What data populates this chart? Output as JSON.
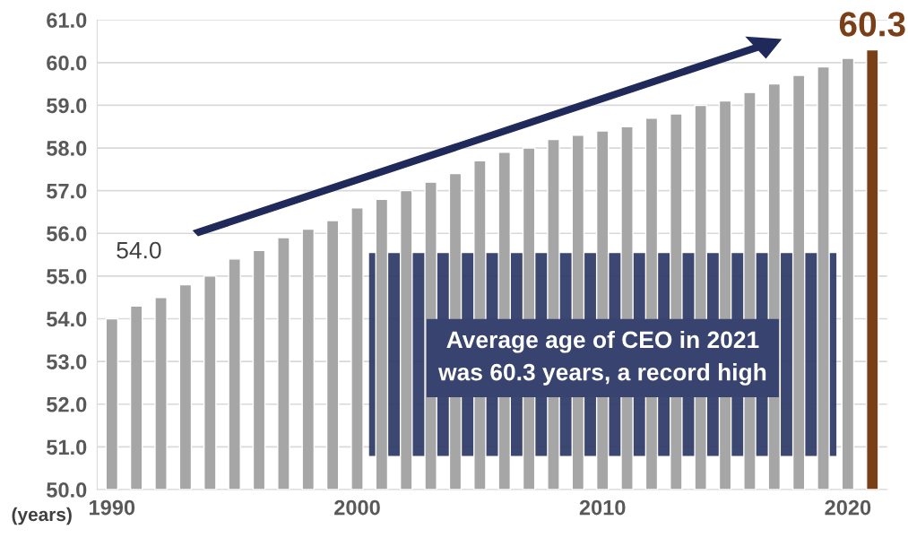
{
  "chart_data": {
    "type": "bar",
    "ylabel": "(years)",
    "categories": [
      "1990",
      null,
      null,
      null,
      null,
      null,
      null,
      null,
      null,
      null,
      "2000",
      null,
      null,
      null,
      null,
      null,
      null,
      null,
      null,
      null,
      "2010",
      null,
      null,
      null,
      null,
      null,
      null,
      null,
      null,
      null,
      "2020",
      null
    ],
    "values": [
      54.0,
      54.3,
      54.5,
      54.8,
      55.0,
      55.4,
      55.6,
      55.9,
      56.1,
      56.3,
      56.6,
      56.8,
      57.0,
      57.2,
      57.4,
      57.7,
      57.9,
      58.0,
      58.2,
      58.3,
      58.4,
      58.5,
      58.7,
      58.8,
      59.0,
      59.1,
      59.3,
      59.5,
      59.7,
      59.9,
      60.1,
      60.3
    ],
    "colors": [
      "#a6a6a6",
      "#a6a6a6",
      "#a6a6a6",
      "#a6a6a6",
      "#a6a6a6",
      "#a6a6a6",
      "#a6a6a6",
      "#a6a6a6",
      "#a6a6a6",
      "#a6a6a6",
      "#a6a6a6",
      "#a6a6a6",
      "#a6a6a6",
      "#a6a6a6",
      "#a6a6a6",
      "#a6a6a6",
      "#a6a6a6",
      "#a6a6a6",
      "#a6a6a6",
      "#a6a6a6",
      "#a6a6a6",
      "#a6a6a6",
      "#a6a6a6",
      "#a6a6a6",
      "#a6a6a6",
      "#a6a6a6",
      "#a6a6a6",
      "#a6a6a6",
      "#a6a6a6",
      "#a6a6a6",
      "#a6a6a6",
      "#7b3f17"
    ],
    "value_labels": [
      "54.0",
      null,
      null,
      null,
      null,
      null,
      null,
      null,
      null,
      null,
      null,
      null,
      null,
      null,
      null,
      null,
      null,
      null,
      null,
      null,
      null,
      null,
      null,
      null,
      null,
      null,
      null,
      null,
      null,
      null,
      null,
      "60.3"
    ],
    "ylim": [
      50,
      61
    ],
    "yticks": [
      {
        "value": 50,
        "label": "50.0"
      },
      {
        "value": 51,
        "label": "51.0"
      },
      {
        "value": 52,
        "label": "52.0"
      },
      {
        "value": 53,
        "label": "53.0"
      },
      {
        "value": 54,
        "label": "54.0"
      },
      {
        "value": 55,
        "label": "55.0"
      },
      {
        "value": 56,
        "label": "56.0"
      },
      {
        "value": 57,
        "label": "57.0"
      },
      {
        "value": 58,
        "label": "58.0"
      },
      {
        "value": 59,
        "label": "59.0"
      },
      {
        "value": 60,
        "label": "60.0"
      },
      {
        "value": 61,
        "label": "61.0"
      }
    ],
    "grid": "y",
    "annotations": [
      "Average age of CEO in 2021\nwas 60.3 years, a record high"
    ]
  }
}
